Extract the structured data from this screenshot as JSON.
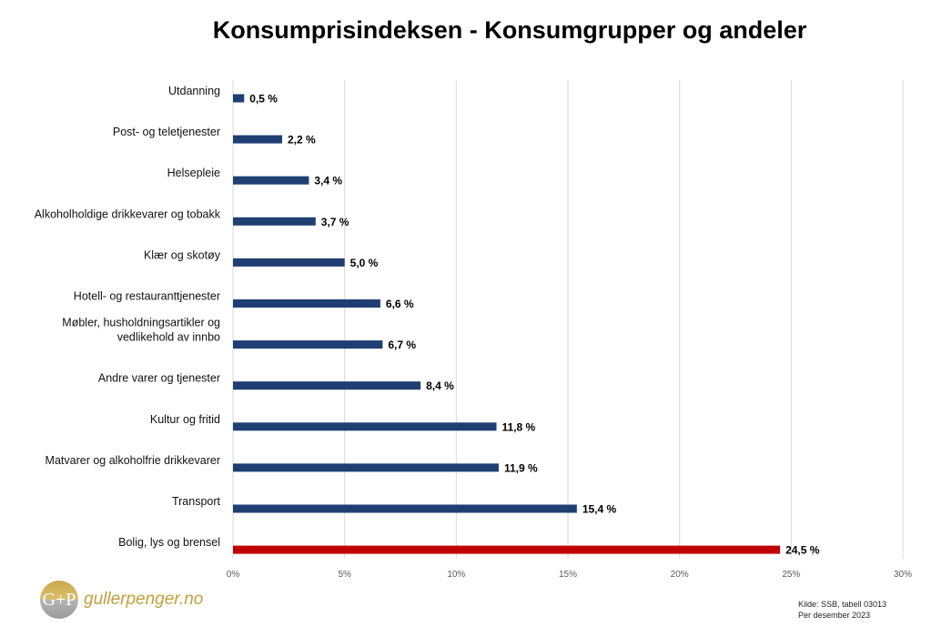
{
  "chart_data": {
    "type": "bar",
    "orientation": "horizontal",
    "title": "Konsumprisindeksen - Konsumgrupper og andeler",
    "categories": [
      "Utdanning",
      "Post- og teletjenester",
      "Helsepleie",
      "Alkoholholdige drikkevarer og tobakk",
      "Klær og skotøy",
      "Hotell- og restauranttjenester",
      "Møbler, husholdningsartikler og\nvedlikehold av innbo",
      "Andre varer og tjenester",
      "Kultur og fritid",
      "Matvarer og alkoholfrie drikkevarer",
      "Transport",
      "Bolig, lys og brensel"
    ],
    "values": [
      0.5,
      2.2,
      3.4,
      3.7,
      5.0,
      6.6,
      6.7,
      8.4,
      11.8,
      11.9,
      15.4,
      24.5
    ],
    "data_labels": [
      "0,5 %",
      "2,2 %",
      "3,4 %",
      "3,7 %",
      "5,0 %",
      "6,6 %",
      "6,7 %",
      "8,4 %",
      "11,8 %",
      "11,9 %",
      "15,4 %",
      "24,5 %"
    ],
    "xlim": [
      0,
      30
    ],
    "x_ticks": [
      0,
      5,
      10,
      15,
      20,
      25,
      30
    ],
    "x_tick_labels": [
      "0%",
      "5%",
      "10%",
      "15%",
      "20%",
      "25%",
      "30%"
    ],
    "grid": true,
    "colors": {
      "default": "#1f3f73",
      "highlight": "#c00000"
    },
    "highlight_index": 11
  },
  "logo": {
    "mark": "G+P",
    "text": "gullerpenger.no"
  },
  "source": {
    "line1": "Kilde: SSB, tabell 03013",
    "line2": "Per desember 2023"
  }
}
